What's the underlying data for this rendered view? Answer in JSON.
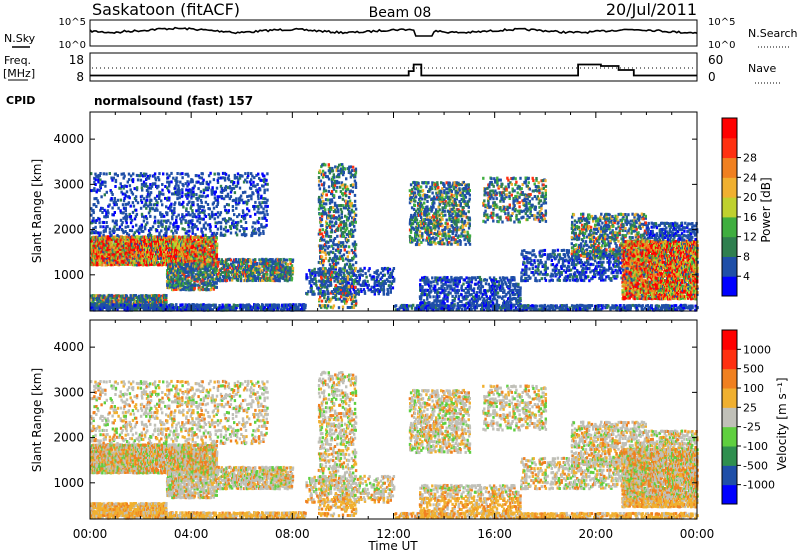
{
  "header": {
    "radar": "Saskatoon (fitACF)",
    "beam": "Beam 08",
    "date": "20/Jul/2011"
  },
  "noise_panel": {
    "left_label": "N.Sky",
    "right_label": "N.Search",
    "left_ticks": [
      "10^5",
      "10^0"
    ],
    "right_ticks": [
      "10^5",
      "10^0"
    ]
  },
  "freq_panel": {
    "left_label_1": "Freq.",
    "left_label_2": "[MHz]",
    "right_label": "Nave",
    "left_ticks": [
      "18",
      "8"
    ],
    "right_ticks": [
      "60",
      "0"
    ]
  },
  "cpid": {
    "label": "CPID",
    "program": "normalsound (fast) 157"
  },
  "colors": {
    "power_scale": [
      "#0000ff",
      "#1f4fa8",
      "#2f7f4f",
      "#3fae3f",
      "#bfd12f",
      "#f0b030",
      "#f08020",
      "#ff3010",
      "#ff0000"
    ],
    "velocity_scale": [
      "#0000ff",
      "#1f4fa8",
      "#2f8f4f",
      "#5fcf3f",
      "#c0c0b8",
      "#f0b030",
      "#f08020",
      "#ff3010",
      "#ff0000"
    ]
  },
  "chart_data": [
    {
      "type": "heatmap",
      "quantity": "power",
      "ylabel": "Slant Range [km]",
      "ylim": [
        200,
        4600
      ],
      "y_ticks": [
        "1000",
        "2000",
        "3000",
        "4000"
      ],
      "xlim": [
        "00:00",
        "24:00"
      ],
      "x_ticks": [
        "00:00",
        "04:00",
        "08:00",
        "12:00",
        "16:00",
        "20:00",
        "00:00"
      ],
      "colorbar_label": "Power [dB]",
      "colorbar_ticks": [
        "4",
        "8",
        "12",
        "16",
        "20",
        "24",
        "28"
      ],
      "colorbar_range": [
        0,
        30
      ]
    },
    {
      "type": "heatmap",
      "quantity": "velocity",
      "ylabel": "Slant Range [km]",
      "ylim": [
        200,
        4600
      ],
      "y_ticks": [
        "1000",
        "2000",
        "3000",
        "4000"
      ],
      "xlim": [
        "00:00",
        "24:00"
      ],
      "x_ticks": [
        "00:00",
        "04:00",
        "08:00",
        "12:00",
        "16:00",
        "20:00",
        "00:00"
      ],
      "xlabel": "Time UT",
      "colorbar_label": "Velocity [m s⁻¹]",
      "colorbar_ticks": [
        "1000",
        "500",
        "100",
        "25",
        "-25",
        "-100",
        "-500",
        "-1000"
      ]
    }
  ]
}
